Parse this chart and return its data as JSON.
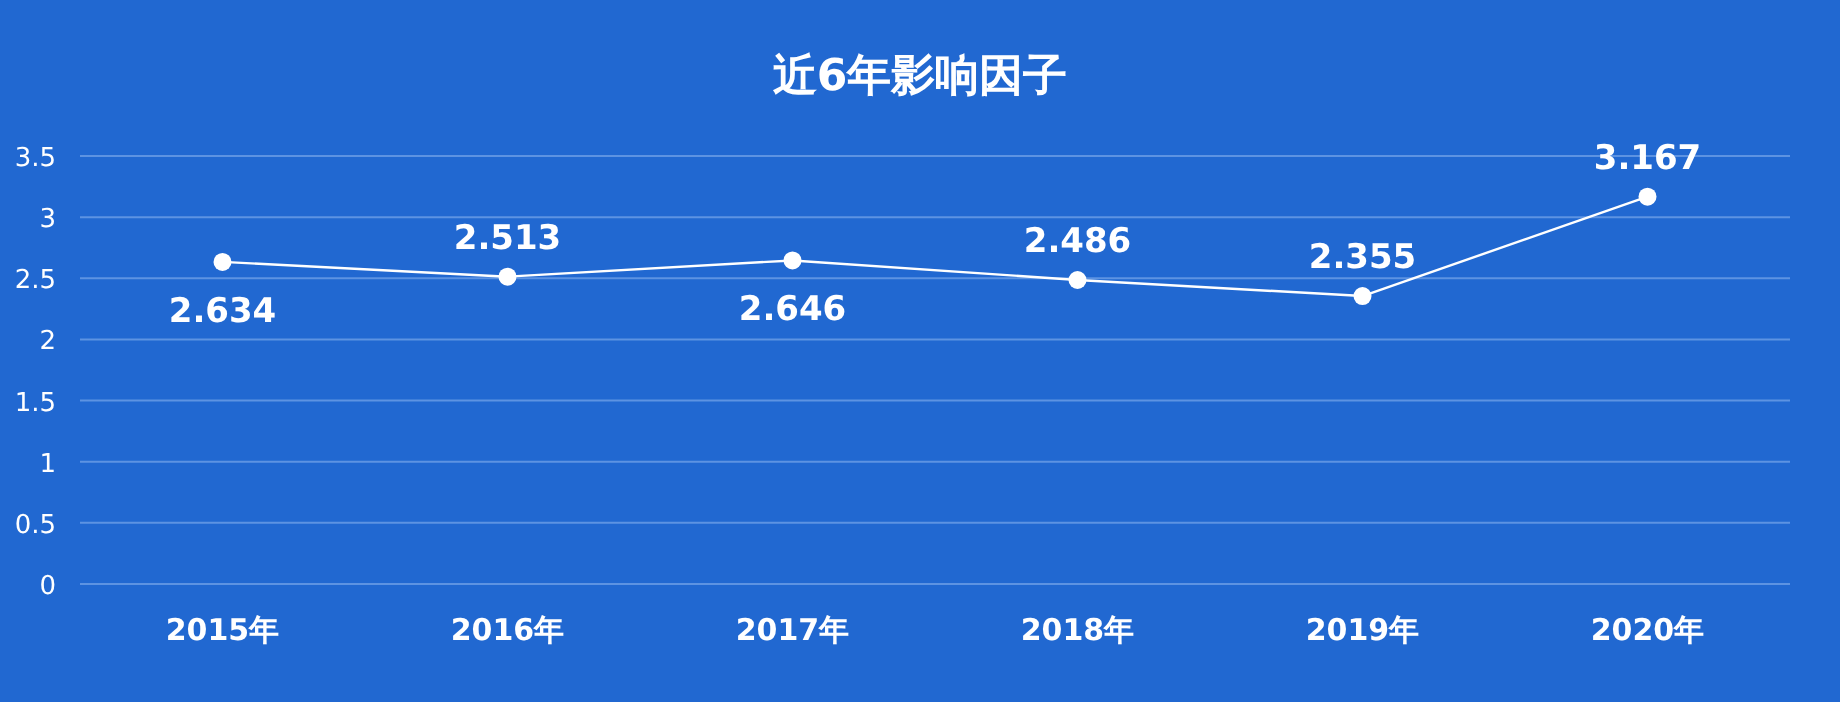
{
  "chart_data": {
    "type": "line",
    "title": "近6年影响因子",
    "categories": [
      "2015年",
      "2016年",
      "2017年",
      "2018年",
      "2019年",
      "2020年"
    ],
    "series": [
      {
        "color": "#ffffff",
        "values": [
          2.634,
          2.513,
          2.646,
          2.486,
          2.355,
          3.167
        ]
      }
    ],
    "ylim": [
      0,
      3.5
    ],
    "yticks": [
      0,
      0.5,
      1,
      1.5,
      2,
      2.5,
      3,
      3.5
    ],
    "grid": "y",
    "marker": "circle",
    "data_labels": true
  }
}
